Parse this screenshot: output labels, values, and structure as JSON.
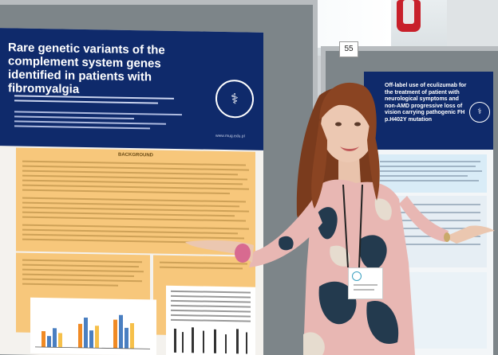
{
  "left_poster": {
    "title": "Rare genetic variants of the complement system genes identified in patients with fibromyalgia",
    "section_heading": "BACKGROUND",
    "url": "www.mug.edu.pl"
  },
  "right_poster": {
    "title": "Off-label use of eculizumab for the treatment of patient with neurological symptoms and non-AMD progressive loss of vision carrying pathogenic FH p.H402Y mutation"
  },
  "board": {
    "number": "55"
  },
  "colors": {
    "poster_header": "#0f2a6b",
    "section_fill": "#f7c77b",
    "dress_pink": "#e8b7b3",
    "bracelet": "#d86a90"
  }
}
